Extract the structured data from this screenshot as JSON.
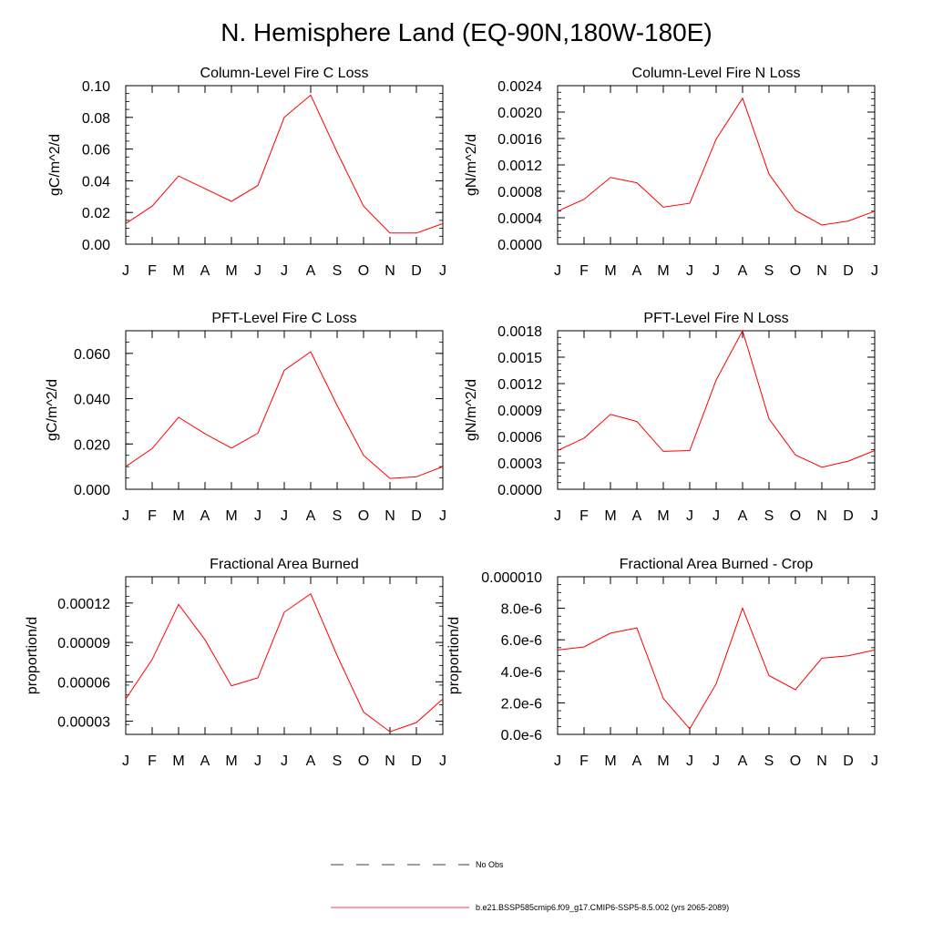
{
  "title": "N. Hemisphere Land (EQ-90N,180W-180E)",
  "chart_data": [
    {
      "type": "line",
      "title": "Column-Level Fire C Loss",
      "ylabel": "gC/m^2/d",
      "categories": [
        "J",
        "F",
        "M",
        "A",
        "M",
        "J",
        "J",
        "A",
        "S",
        "O",
        "N",
        "D",
        "J"
      ],
      "ylim": [
        0,
        0.1
      ],
      "yticks": [
        0,
        0.02,
        0.04,
        0.06,
        0.08,
        0.1
      ],
      "ytick_labels": [
        "0.00",
        "0.02",
        "0.04",
        "0.06",
        "0.08",
        "0.10"
      ],
      "series": [
        {
          "name": "b.e21.BSSP585cmip6.f09_g17.CMIP6-SSP5-8.5.002 (yrs 2065-2089)",
          "values": [
            0.013,
            0.024,
            0.043,
            0.035,
            0.027,
            0.037,
            0.08,
            0.094,
            0.058,
            0.024,
            0.007,
            0.007,
            0.013
          ]
        }
      ]
    },
    {
      "type": "line",
      "title": "Column-Level Fire N Loss",
      "ylabel": "gN/m^2/d",
      "categories": [
        "J",
        "F",
        "M",
        "A",
        "M",
        "J",
        "J",
        "A",
        "S",
        "O",
        "N",
        "D",
        "J"
      ],
      "ylim": [
        0,
        0.0024
      ],
      "yticks": [
        0,
        0.0004,
        0.0008,
        0.0012,
        0.0016,
        0.002,
        0.0024
      ],
      "ytick_labels": [
        "0.0000",
        "0.0004",
        "0.0008",
        "0.0012",
        "0.0016",
        "0.0020",
        "0.0024"
      ],
      "series": [
        {
          "name": "b.e21.BSSP585cmip6.f09_g17.CMIP6-SSP5-8.5.002 (yrs 2065-2089)",
          "values": [
            0.0005,
            0.00068,
            0.00101,
            0.00093,
            0.00056,
            0.00062,
            0.00159,
            0.00221,
            0.00106,
            0.00051,
            0.00029,
            0.00035,
            0.0005
          ]
        }
      ]
    },
    {
      "type": "line",
      "title": "PFT-Level Fire C Loss",
      "ylabel": "gC/m^2/d",
      "categories": [
        "J",
        "F",
        "M",
        "A",
        "M",
        "J",
        "J",
        "A",
        "S",
        "O",
        "N",
        "D",
        "J"
      ],
      "ylim": [
        0,
        0.07
      ],
      "yticks": [
        0,
        0.02,
        0.04,
        0.06
      ],
      "ytick_labels": [
        "0.000",
        "0.020",
        "0.040",
        "0.060"
      ],
      "series": [
        {
          "name": "b.e21.BSSP585cmip6.f09_g17.CMIP6-SSP5-8.5.002 (yrs 2065-2089)",
          "values": [
            0.01,
            0.018,
            0.0318,
            0.0245,
            0.0182,
            0.0248,
            0.0525,
            0.0607,
            0.037,
            0.015,
            0.0048,
            0.0055,
            0.01
          ]
        }
      ]
    },
    {
      "type": "line",
      "title": "PFT-Level Fire N Loss",
      "ylabel": "gN/m^2/d",
      "categories": [
        "J",
        "F",
        "M",
        "A",
        "M",
        "J",
        "J",
        "A",
        "S",
        "O",
        "N",
        "D",
        "J"
      ],
      "ylim": [
        0,
        0.0018
      ],
      "yticks": [
        0,
        0.0003,
        0.0006,
        0.0009,
        0.0012,
        0.0015,
        0.0018
      ],
      "ytick_labels": [
        "0.0000",
        "0.0003",
        "0.0006",
        "0.0009",
        "0.0012",
        "0.0015",
        "0.0018"
      ],
      "series": [
        {
          "name": "b.e21.BSSP585cmip6.f09_g17.CMIP6-SSP5-8.5.002 (yrs 2065-2089)",
          "values": [
            0.00044,
            0.00058,
            0.00085,
            0.00077,
            0.00043,
            0.00044,
            0.00124,
            0.0018,
            0.0008,
            0.00039,
            0.00025,
            0.00032,
            0.00044
          ]
        }
      ]
    },
    {
      "type": "line",
      "title": "Fractional Area Burned",
      "ylabel": "proportion/d",
      "categories": [
        "J",
        "F",
        "M",
        "A",
        "M",
        "J",
        "J",
        "A",
        "S",
        "O",
        "N",
        "D",
        "J"
      ],
      "ylim": [
        2e-05,
        0.00014
      ],
      "yticks": [
        3e-05,
        6e-05,
        9e-05,
        0.00012
      ],
      "ytick_labels": [
        "0.00003",
        "0.00006",
        "0.00009",
        "0.00012"
      ],
      "series": [
        {
          "name": "b.e21.BSSP585cmip6.f09_g17.CMIP6-SSP5-8.5.002 (yrs 2065-2089)",
          "values": [
            4.7e-05,
            7.7e-05,
            0.000119,
            9.2e-05,
            5.7e-05,
            6.3e-05,
            0.000113,
            0.000127,
            8e-05,
            3.7e-05,
            2.2e-05,
            2.9e-05,
            4.7e-05
          ]
        }
      ]
    },
    {
      "type": "line",
      "title": "Fractional Area Burned - Crop",
      "ylabel": "proportion/d",
      "categories": [
        "J",
        "F",
        "M",
        "A",
        "M",
        "J",
        "J",
        "A",
        "S",
        "O",
        "N",
        "D",
        "J"
      ],
      "ylim": [
        0,
        1e-05
      ],
      "yticks": [
        0,
        2e-06,
        4e-06,
        6e-06,
        8e-06,
        1e-05
      ],
      "ytick_labels": [
        "0.0e-6",
        "2.0e-6",
        "4.0e-6",
        "6.0e-6",
        "8.0e-6",
        "0.000010"
      ],
      "series": [
        {
          "name": "b.e21.BSSP585cmip6.f09_g17.CMIP6-SSP5-8.5.002 (yrs 2065-2089)",
          "values": [
            5.35e-06,
            5.55e-06,
            6.42e-06,
            6.75e-06,
            2.28e-06,
            3.5e-07,
            3.2e-06,
            8.01e-06,
            3.73e-06,
            2.83e-06,
            4.83e-06,
            4.98e-06,
            5.35e-06
          ]
        }
      ]
    }
  ],
  "legend": {
    "items": [
      {
        "label": "No Obs",
        "color": "#000000",
        "style": "dashed"
      },
      {
        "label": "b.e21.BSSP585cmip6.f09_g17.CMIP6-SSP5-8.5.002 (yrs 2065-2089)",
        "color": "#ff0000",
        "style": "solid"
      }
    ]
  }
}
